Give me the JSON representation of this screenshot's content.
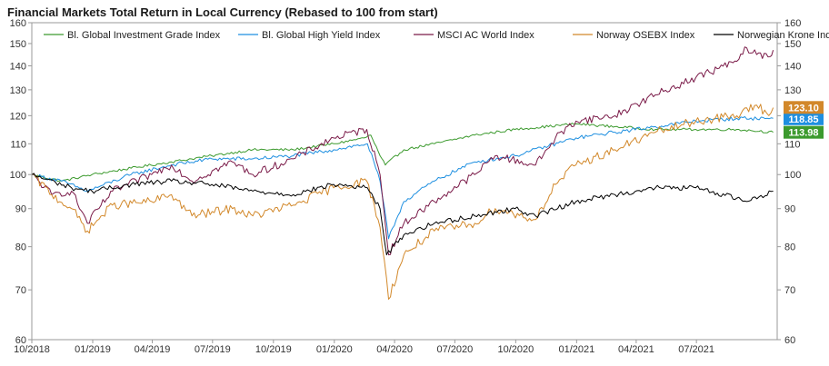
{
  "chart_data": {
    "type": "line",
    "title": "Financial Markets Total Return in Local Currency (Rebased to 100 from start)",
    "xlabel": "",
    "ylabel": "",
    "y_scale": "log",
    "ylim": [
      60,
      160
    ],
    "y_ticks": [
      60,
      70,
      80,
      90,
      100,
      110,
      120,
      130,
      140,
      150,
      160
    ],
    "x_range": [
      "2018-10-01",
      "2021-10-31"
    ],
    "x_ticks": [
      "10/2018",
      "01/2019",
      "04/2019",
      "07/2019",
      "10/2019",
      "01/2020",
      "04/2020",
      "07/2020",
      "10/2020",
      "01/2021",
      "04/2021",
      "07/2021"
    ],
    "legend_position": "top",
    "series": [
      {
        "name": "Bl. Global Investment Grade Index",
        "color": "#3c9a2e",
        "end_label": "113.98",
        "points": [
          [
            "2018-10-01",
            100
          ],
          [
            "2018-11-15",
            98
          ],
          [
            "2018-12-31",
            100
          ],
          [
            "2019-02-28",
            102
          ],
          [
            "2019-04-30",
            104
          ],
          [
            "2019-06-30",
            106
          ],
          [
            "2019-08-31",
            108
          ],
          [
            "2019-10-31",
            108
          ],
          [
            "2019-12-31",
            110
          ],
          [
            "2020-02-15",
            112
          ],
          [
            "2020-02-25",
            113
          ],
          [
            "2020-03-10",
            106
          ],
          [
            "2020-03-18",
            103
          ],
          [
            "2020-04-15",
            108
          ],
          [
            "2020-05-31",
            110
          ],
          [
            "2020-07-31",
            113
          ],
          [
            "2020-09-30",
            115
          ],
          [
            "2020-12-31",
            117
          ],
          [
            "2021-02-28",
            116
          ],
          [
            "2021-04-30",
            115
          ],
          [
            "2021-06-30",
            115
          ],
          [
            "2021-08-31",
            115
          ],
          [
            "2021-10-25",
            114
          ]
        ]
      },
      {
        "name": "Bl. Global High Yield Index",
        "color": "#1e8fe0",
        "end_label": "118.85",
        "points": [
          [
            "2018-10-01",
            100
          ],
          [
            "2018-11-15",
            98
          ],
          [
            "2018-12-24",
            95
          ],
          [
            "2019-02-28",
            100
          ],
          [
            "2019-04-30",
            103
          ],
          [
            "2019-06-30",
            105
          ],
          [
            "2019-08-31",
            105
          ],
          [
            "2019-10-31",
            106
          ],
          [
            "2019-12-31",
            108
          ],
          [
            "2020-02-20",
            110
          ],
          [
            "2020-03-10",
            98
          ],
          [
            "2020-03-23",
            82
          ],
          [
            "2020-04-15",
            92
          ],
          [
            "2020-05-31",
            98
          ],
          [
            "2020-07-31",
            104
          ],
          [
            "2020-09-30",
            106
          ],
          [
            "2020-12-31",
            112
          ],
          [
            "2021-02-28",
            114
          ],
          [
            "2021-04-30",
            116
          ],
          [
            "2021-06-30",
            118
          ],
          [
            "2021-08-31",
            119
          ],
          [
            "2021-10-25",
            119
          ]
        ]
      },
      {
        "name": "MSCI AC World Index",
        "color": "#7a1a48",
        "end_label": "",
        "points": [
          [
            "2018-10-01",
            100
          ],
          [
            "2018-10-31",
            94
          ],
          [
            "2018-11-30",
            95
          ],
          [
            "2018-12-24",
            86
          ],
          [
            "2019-01-31",
            95
          ],
          [
            "2019-03-31",
            100
          ],
          [
            "2019-04-30",
            103
          ],
          [
            "2019-05-31",
            98
          ],
          [
            "2019-07-31",
            104
          ],
          [
            "2019-08-31",
            100
          ],
          [
            "2019-10-31",
            105
          ],
          [
            "2019-12-31",
            112
          ],
          [
            "2020-02-19",
            115
          ],
          [
            "2020-03-10",
            100
          ],
          [
            "2020-03-23",
            78
          ],
          [
            "2020-04-15",
            86
          ],
          [
            "2020-05-31",
            92
          ],
          [
            "2020-07-31",
            100
          ],
          [
            "2020-08-31",
            106
          ],
          [
            "2020-10-31",
            103
          ],
          [
            "2020-11-30",
            112
          ],
          [
            "2020-12-31",
            118
          ],
          [
            "2021-02-28",
            120
          ],
          [
            "2021-04-30",
            128
          ],
          [
            "2021-06-30",
            135
          ],
          [
            "2021-08-31",
            142
          ],
          [
            "2021-09-15",
            148
          ],
          [
            "2021-09-30",
            145
          ],
          [
            "2021-10-20",
            144
          ],
          [
            "2021-10-25",
            147
          ]
        ]
      },
      {
        "name": "Norway OSEBX Index",
        "color": "#d2882a",
        "end_label": "123.10",
        "points": [
          [
            "2018-10-01",
            100
          ],
          [
            "2018-10-31",
            94
          ],
          [
            "2018-11-30",
            90
          ],
          [
            "2018-12-24",
            84
          ],
          [
            "2019-01-31",
            91
          ],
          [
            "2019-03-31",
            92
          ],
          [
            "2019-04-30",
            94
          ],
          [
            "2019-05-31",
            88
          ],
          [
            "2019-07-31",
            90
          ],
          [
            "2019-08-31",
            88
          ],
          [
            "2019-10-31",
            91
          ],
          [
            "2019-12-31",
            96
          ],
          [
            "2020-02-19",
            98
          ],
          [
            "2020-03-10",
            85
          ],
          [
            "2020-03-23",
            68
          ],
          [
            "2020-04-15",
            78
          ],
          [
            "2020-05-31",
            84
          ],
          [
            "2020-07-31",
            86
          ],
          [
            "2020-08-31",
            90
          ],
          [
            "2020-10-31",
            87
          ],
          [
            "2020-11-30",
            97
          ],
          [
            "2020-12-31",
            103
          ],
          [
            "2021-02-28",
            108
          ],
          [
            "2021-04-30",
            114
          ],
          [
            "2021-06-30",
            118
          ],
          [
            "2021-08-31",
            120
          ],
          [
            "2021-09-30",
            124
          ],
          [
            "2021-10-15",
            121
          ],
          [
            "2021-10-25",
            123
          ]
        ]
      },
      {
        "name": "Norwegian Krone Index",
        "color": "#000000",
        "end_label": "",
        "points": [
          [
            "2018-10-01",
            100
          ],
          [
            "2018-11-30",
            96
          ],
          [
            "2018-12-31",
            95
          ],
          [
            "2019-02-28",
            97
          ],
          [
            "2019-04-30",
            98
          ],
          [
            "2019-06-30",
            97
          ],
          [
            "2019-08-31",
            95
          ],
          [
            "2019-10-31",
            94
          ],
          [
            "2019-12-31",
            97
          ],
          [
            "2020-02-20",
            96
          ],
          [
            "2020-03-10",
            90
          ],
          [
            "2020-03-20",
            78
          ],
          [
            "2020-04-15",
            83
          ],
          [
            "2020-05-31",
            86
          ],
          [
            "2020-07-31",
            88
          ],
          [
            "2020-09-30",
            90
          ],
          [
            "2020-10-31",
            88
          ],
          [
            "2020-12-31",
            92
          ],
          [
            "2021-02-28",
            94
          ],
          [
            "2021-04-30",
            96
          ],
          [
            "2021-06-30",
            96
          ],
          [
            "2021-08-31",
            93
          ],
          [
            "2021-09-15",
            92
          ],
          [
            "2021-10-25",
            95
          ]
        ]
      }
    ]
  }
}
